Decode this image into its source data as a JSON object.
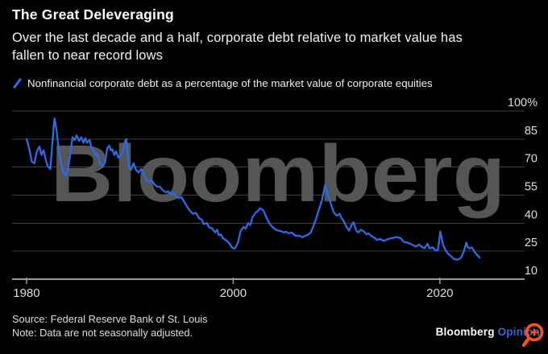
{
  "header": {
    "title": "The Great Deleveraging",
    "subtitle_lines": [
      "Over the last decade and a half, corporate debt relative to market value has",
      "fallen to near record lows"
    ]
  },
  "legend": {
    "label": "Nonfinancial corporate debt as a percentage of the market value of corporate equities"
  },
  "watermark": "Bloomberg",
  "footer": {
    "source": "Source: Federal Reserve Bank of St. Louis",
    "note": "Note: Data are not seasonally adjusted.",
    "logo": {
      "brand": "Bloomberg",
      "suffix": "Opinion"
    }
  },
  "colors": {
    "background": "#000000",
    "line": "#2c6be4",
    "grid": "#404040",
    "axis": "#9a9a9a",
    "tick_text": "#dcdcdc",
    "watermark": "#555555",
    "accent_orange": "#f4511e",
    "opinion_blue": "#2f6ac9"
  },
  "chart_data": {
    "type": "line",
    "title": "The Great Deleveraging",
    "subtitle": "Over the last decade and a half, corporate debt relative to market value has fallen to near record lows",
    "legend_position": "top-left",
    "grid": true,
    "x_axis": {
      "ticks": [
        1980,
        2000,
        2020
      ],
      "tick_labels": [
        "1980",
        "2000",
        "2020"
      ],
      "min": 1978.6,
      "max": 2028.2
    },
    "y_axis": {
      "ticks": [
        10,
        25,
        40,
        55,
        70,
        85,
        100
      ],
      "tick_labels": [
        "10",
        "25",
        "40",
        "55",
        "70",
        "85",
        "100%"
      ],
      "min": 10,
      "max": 100,
      "side": "right"
    },
    "series": [
      {
        "name": "Nonfinancial corporate debt as a percentage of the market value of corporate equities",
        "color": "#2c6be4",
        "points": [
          [
            1980,
            85
          ],
          [
            1980.25,
            80
          ],
          [
            1980.5,
            73
          ],
          [
            1980.75,
            72
          ],
          [
            1981,
            78.5
          ],
          [
            1981.25,
            81
          ],
          [
            1981.45,
            76.5
          ],
          [
            1981.65,
            79
          ],
          [
            1981.85,
            74
          ],
          [
            1982.05,
            70.5
          ],
          [
            1982.3,
            69
          ],
          [
            1982.5,
            83
          ],
          [
            1982.7,
            96
          ],
          [
            1982.9,
            90
          ],
          [
            1983.1,
            80
          ],
          [
            1983.3,
            73.5
          ],
          [
            1983.55,
            67.5
          ],
          [
            1983.8,
            65.5
          ],
          [
            1984,
            69
          ],
          [
            1984.2,
            75.5
          ],
          [
            1984.45,
            86
          ],
          [
            1984.65,
            84.5
          ],
          [
            1984.85,
            87
          ],
          [
            1985.1,
            84
          ],
          [
            1985.3,
            86
          ],
          [
            1985.5,
            83
          ],
          [
            1985.7,
            85.5
          ],
          [
            1985.85,
            83
          ],
          [
            1986.1,
            84.5
          ],
          [
            1986.3,
            80
          ],
          [
            1986.5,
            79
          ],
          [
            1986.65,
            76.5
          ],
          [
            1986.8,
            77.5
          ],
          [
            1987,
            74
          ],
          [
            1987.2,
            71
          ],
          [
            1987.35,
            70
          ],
          [
            1987.6,
            72.5
          ],
          [
            1987.8,
            80
          ],
          [
            1988,
            81.5
          ],
          [
            1988.15,
            79
          ],
          [
            1988.3,
            79.5
          ],
          [
            1988.5,
            76.5
          ],
          [
            1988.65,
            78.5
          ],
          [
            1988.9,
            75
          ],
          [
            1989.1,
            76
          ],
          [
            1989.3,
            78
          ],
          [
            1989.5,
            83.5
          ],
          [
            1989.65,
            85
          ],
          [
            1989.9,
            70.5
          ],
          [
            1990.1,
            68.5
          ],
          [
            1990.35,
            72
          ],
          [
            1990.6,
            68.5
          ],
          [
            1990.85,
            67
          ],
          [
            1991.1,
            69
          ],
          [
            1991.35,
            66
          ],
          [
            1991.6,
            63.5
          ],
          [
            1991.9,
            62
          ],
          [
            1992.1,
            63
          ],
          [
            1992.4,
            60.5
          ],
          [
            1992.65,
            59.5
          ],
          [
            1992.9,
            59.5
          ],
          [
            1993.2,
            57.5
          ],
          [
            1993.45,
            56.5
          ],
          [
            1993.7,
            57
          ],
          [
            1994,
            55
          ],
          [
            1994.2,
            56.5
          ],
          [
            1994.45,
            54
          ],
          [
            1994.7,
            53.5
          ],
          [
            1995,
            54
          ],
          [
            1995.35,
            50.5
          ],
          [
            1995.75,
            47
          ],
          [
            1996.1,
            45
          ],
          [
            1996.4,
            45.5
          ],
          [
            1996.7,
            42.5
          ],
          [
            1996.95,
            42
          ],
          [
            1997.15,
            39.5
          ],
          [
            1997.45,
            40
          ],
          [
            1997.7,
            37.5
          ],
          [
            1997.9,
            37.5
          ],
          [
            1998.25,
            35
          ],
          [
            1998.45,
            36.5
          ],
          [
            1998.6,
            33.5
          ],
          [
            1998.8,
            34
          ],
          [
            1999,
            32
          ],
          [
            1999.25,
            31
          ],
          [
            1999.5,
            30
          ],
          [
            1999.65,
            29
          ],
          [
            1999.9,
            26.8
          ],
          [
            2000.15,
            26.3
          ],
          [
            2000.45,
            29.5
          ],
          [
            2000.7,
            35.5
          ],
          [
            2001,
            38
          ],
          [
            2001.2,
            37
          ],
          [
            2001.45,
            40
          ],
          [
            2001.65,
            39
          ],
          [
            2001.85,
            43
          ],
          [
            2002.15,
            45.5
          ],
          [
            2002.4,
            46.5
          ],
          [
            2002.6,
            48
          ],
          [
            2002.9,
            47
          ],
          [
            2003.1,
            44.5
          ],
          [
            2003.3,
            42
          ],
          [
            2003.55,
            39.5
          ],
          [
            2003.8,
            38
          ],
          [
            2004.1,
            36.5
          ],
          [
            2004.35,
            36
          ],
          [
            2004.6,
            35.8
          ],
          [
            2004.9,
            35
          ],
          [
            2005.1,
            35.4
          ],
          [
            2005.4,
            34.5
          ],
          [
            2005.65,
            35
          ],
          [
            2005.9,
            33.7
          ],
          [
            2006.15,
            33.2
          ],
          [
            2006.45,
            33.2
          ],
          [
            2006.7,
            32.4
          ],
          [
            2006.95,
            33.2
          ],
          [
            2007.2,
            33.7
          ],
          [
            2007.5,
            35
          ],
          [
            2007.7,
            37.5
          ],
          [
            2008,
            42
          ],
          [
            2008.25,
            46.5
          ],
          [
            2008.6,
            52.5
          ],
          [
            2008.9,
            60.5
          ],
          [
            2009.2,
            54.5
          ],
          [
            2009.5,
            49.5
          ],
          [
            2009.7,
            46
          ],
          [
            2010,
            44
          ],
          [
            2010.3,
            45
          ],
          [
            2010.45,
            43
          ],
          [
            2010.7,
            41
          ],
          [
            2010.9,
            38.5
          ],
          [
            2011.2,
            36
          ],
          [
            2011.5,
            39.5
          ],
          [
            2011.65,
            40.5
          ],
          [
            2011.9,
            36
          ],
          [
            2012.1,
            35
          ],
          [
            2012.35,
            36.5
          ],
          [
            2012.65,
            35.5
          ],
          [
            2012.9,
            34
          ],
          [
            2013.1,
            34.5
          ],
          [
            2013.4,
            33
          ],
          [
            2013.7,
            32
          ],
          [
            2013.9,
            31
          ],
          [
            2014.2,
            31.5
          ],
          [
            2014.6,
            30.5
          ],
          [
            2015,
            31.5
          ],
          [
            2015.4,
            32
          ],
          [
            2015.8,
            32.5
          ],
          [
            2016.2,
            32
          ],
          [
            2016.5,
            30
          ],
          [
            2016.9,
            29.5
          ],
          [
            2017.3,
            28.5
          ],
          [
            2017.7,
            27.5
          ],
          [
            2018,
            28.5
          ],
          [
            2018.2,
            27.5
          ],
          [
            2018.5,
            26.5
          ],
          [
            2018.8,
            29
          ],
          [
            2019,
            26.5
          ],
          [
            2019.3,
            27
          ],
          [
            2019.55,
            25.5
          ],
          [
            2019.8,
            25.5
          ],
          [
            2020.05,
            35.5
          ],
          [
            2020.3,
            28.5
          ],
          [
            2020.55,
            25.5
          ],
          [
            2020.8,
            23.5
          ],
          [
            2021.05,
            22.5
          ],
          [
            2021.3,
            21
          ],
          [
            2021.55,
            20.5
          ],
          [
            2021.8,
            20.5
          ],
          [
            2022.05,
            21.5
          ],
          [
            2022.3,
            24.5
          ],
          [
            2022.55,
            29.5
          ],
          [
            2022.7,
            27
          ],
          [
            2022.9,
            26.5
          ],
          [
            2023.1,
            27
          ],
          [
            2023.3,
            25
          ],
          [
            2023.5,
            23.5
          ],
          [
            2023.7,
            22.5
          ],
          [
            2023.85,
            21.5
          ]
        ]
      }
    ]
  }
}
